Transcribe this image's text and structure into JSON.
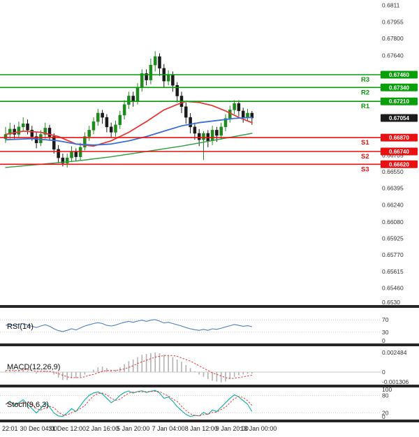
{
  "chart_data": {
    "type": "candlestick",
    "colors": {
      "background": "#ffffff",
      "resistance_line": "#089b08",
      "resistance_box": "#08a008",
      "support_line": "#e81010",
      "support_box": "#e81010",
      "current_price_box": "#1b1b1b",
      "candle_up": "#1f8b1f",
      "candle_down": "#1a1a1a",
      "ma_red": "#e53935",
      "ma_blue": "#3b6fd4",
      "ma_green": "#2f9e44",
      "rsi_line": "#4f81bd",
      "macd_histogram": "#b3b3b3",
      "signal_line": "#e53935",
      "stoch_line": "#20b2aa",
      "axis_text": "#333333",
      "separator": "#262626",
      "grid_dotted": "#c9c9c9"
    },
    "price_axis": {
      "max": 0.6816,
      "min": 0.653,
      "ticks": [
        {
          "label": "0.6811",
          "value": 0.6811
        },
        {
          "label": "0.67955",
          "value": 0.67955
        },
        {
          "label": "0.67800",
          "value": 0.678
        },
        {
          "label": "0.67640",
          "value": 0.6764
        },
        {
          "label": "0.66705",
          "value": 0.66705
        },
        {
          "label": "0.66550",
          "value": 0.6655
        },
        {
          "label": "0.66395",
          "value": 0.66395
        },
        {
          "label": "0.66240",
          "value": 0.6624
        },
        {
          "label": "0.66080",
          "value": 0.6608
        },
        {
          "label": "0.65925",
          "value": 0.65925
        },
        {
          "label": "0.65770",
          "value": 0.6577
        },
        {
          "label": "0.65615",
          "value": 0.65615
        },
        {
          "label": "0.65460",
          "value": 0.6546
        },
        {
          "label": "0.6530",
          "value": 0.653
        }
      ]
    },
    "levels": {
      "resistance": [
        {
          "name": "R3",
          "value": 0.6746,
          "label": "0.67460"
        },
        {
          "name": "R2",
          "value": 0.6734,
          "label": "0.67340"
        },
        {
          "name": "R1",
          "value": 0.6721,
          "label": "0.67210"
        }
      ],
      "support": [
        {
          "name": "S1",
          "value": 0.6687,
          "label": "0.66870"
        },
        {
          "name": "S2",
          "value": 0.6674,
          "label": "0.66740"
        },
        {
          "name": "S3",
          "value": 0.6662,
          "label": "0.66620"
        }
      ],
      "current": {
        "value": 0.67054,
        "label": "0.67054"
      }
    },
    "candles": [
      [
        0.6686,
        0.6697,
        0.6682,
        0.669
      ],
      [
        0.669,
        0.6701,
        0.6686,
        0.6695
      ],
      [
        0.6695,
        0.6699,
        0.6686,
        0.669
      ],
      [
        0.669,
        0.6702,
        0.6687,
        0.6697
      ],
      [
        0.6697,
        0.6706,
        0.6693,
        0.67
      ],
      [
        0.67,
        0.6704,
        0.669,
        0.6694
      ],
      [
        0.6694,
        0.6698,
        0.6684,
        0.6688
      ],
      [
        0.6688,
        0.6692,
        0.6677,
        0.6682
      ],
      [
        0.6682,
        0.6694,
        0.6679,
        0.669
      ],
      [
        0.669,
        0.6701,
        0.6686,
        0.6696
      ],
      [
        0.6696,
        0.6699,
        0.6684,
        0.6688
      ],
      [
        0.6688,
        0.6691,
        0.6672,
        0.6676
      ],
      [
        0.6676,
        0.668,
        0.6663,
        0.6668
      ],
      [
        0.6668,
        0.6672,
        0.666,
        0.6663
      ],
      [
        0.6663,
        0.6672,
        0.6659,
        0.6668
      ],
      [
        0.6668,
        0.6679,
        0.6664,
        0.6674
      ],
      [
        0.6674,
        0.6677,
        0.6665,
        0.6669
      ],
      [
        0.6669,
        0.6682,
        0.6666,
        0.6678
      ],
      [
        0.6678,
        0.6692,
        0.6675,
        0.6688
      ],
      [
        0.6688,
        0.6698,
        0.6684,
        0.6694
      ],
      [
        0.6694,
        0.6706,
        0.669,
        0.6702
      ],
      [
        0.6702,
        0.6714,
        0.6698,
        0.671
      ],
      [
        0.671,
        0.6713,
        0.67,
        0.6706
      ],
      [
        0.6706,
        0.6709,
        0.6692,
        0.6697
      ],
      [
        0.6697,
        0.6701,
        0.6687,
        0.6692
      ],
      [
        0.6692,
        0.6703,
        0.6688,
        0.6699
      ],
      [
        0.6699,
        0.6712,
        0.6695,
        0.6708
      ],
      [
        0.6708,
        0.6722,
        0.6704,
        0.6718
      ],
      [
        0.6718,
        0.673,
        0.6714,
        0.6726
      ],
      [
        0.6726,
        0.673,
        0.6716,
        0.6721
      ],
      [
        0.6721,
        0.6738,
        0.6718,
        0.6734
      ],
      [
        0.6734,
        0.6751,
        0.673,
        0.6747
      ],
      [
        0.6747,
        0.6751,
        0.6736,
        0.6741
      ],
      [
        0.6741,
        0.6761,
        0.6737,
        0.6755
      ],
      [
        0.6755,
        0.6768,
        0.6749,
        0.6763
      ],
      [
        0.6763,
        0.6766,
        0.6745,
        0.6752
      ],
      [
        0.6752,
        0.6756,
        0.6734,
        0.674
      ],
      [
        0.674,
        0.675,
        0.6736,
        0.6746
      ],
      [
        0.6746,
        0.6749,
        0.673,
        0.6736
      ],
      [
        0.6736,
        0.6739,
        0.672,
        0.6726
      ],
      [
        0.6726,
        0.673,
        0.671,
        0.6716
      ],
      [
        0.6716,
        0.672,
        0.67,
        0.6706
      ],
      [
        0.6706,
        0.671,
        0.6691,
        0.6697
      ],
      [
        0.6697,
        0.6701,
        0.6685,
        0.6691
      ],
      [
        0.6691,
        0.6695,
        0.6679,
        0.6685
      ],
      [
        0.6685,
        0.6693,
        0.6666,
        0.6691
      ],
      [
        0.6691,
        0.6694,
        0.6678,
        0.6684
      ],
      [
        0.6684,
        0.6698,
        0.668,
        0.6694
      ],
      [
        0.6694,
        0.6697,
        0.6683,
        0.6689
      ],
      [
        0.6689,
        0.6701,
        0.6685,
        0.6697
      ],
      [
        0.6697,
        0.6709,
        0.6693,
        0.6705
      ],
      [
        0.6705,
        0.6717,
        0.6701,
        0.6713
      ],
      [
        0.6713,
        0.6722,
        0.6709,
        0.6719
      ],
      [
        0.6719,
        0.6722,
        0.6707,
        0.6712
      ],
      [
        0.6712,
        0.6715,
        0.6701,
        0.6706
      ],
      [
        0.6706,
        0.6714,
        0.6702,
        0.671
      ],
      [
        0.671,
        0.6712,
        0.6699,
        0.67054
      ]
    ],
    "moving_averages": [
      {
        "name": "ma-slow-red",
        "color": "#e53935",
        "points": [
          [
            0,
            0.669
          ],
          [
            4,
            0.6693
          ],
          [
            8,
            0.6692
          ],
          [
            12,
            0.6688
          ],
          [
            16,
            0.6681
          ],
          [
            20,
            0.6679
          ],
          [
            24,
            0.6684
          ],
          [
            28,
            0.6692
          ],
          [
            32,
            0.6702
          ],
          [
            36,
            0.6713
          ],
          [
            39,
            0.6718
          ],
          [
            41,
            0.6721
          ],
          [
            44,
            0.672
          ],
          [
            47,
            0.6717
          ],
          [
            50,
            0.6712
          ],
          [
            53,
            0.6706
          ],
          [
            56,
            0.6701
          ]
        ]
      },
      {
        "name": "ma-medium-blue",
        "color": "#3b6fd4",
        "points": [
          [
            0,
            0.6685
          ],
          [
            6,
            0.6686
          ],
          [
            12,
            0.6684
          ],
          [
            16,
            0.6681
          ],
          [
            20,
            0.668
          ],
          [
            24,
            0.6681
          ],
          [
            28,
            0.6684
          ],
          [
            32,
            0.6688
          ],
          [
            36,
            0.6693
          ],
          [
            40,
            0.6698
          ],
          [
            44,
            0.6701
          ],
          [
            48,
            0.6703
          ],
          [
            52,
            0.6705
          ],
          [
            56,
            0.6706
          ]
        ]
      },
      {
        "name": "ma-long-green",
        "color": "#2f9e44",
        "points": [
          [
            0,
            0.6659
          ],
          [
            8,
            0.6662
          ],
          [
            16,
            0.6665
          ],
          [
            24,
            0.6669
          ],
          [
            32,
            0.6674
          ],
          [
            40,
            0.6679
          ],
          [
            48,
            0.6685
          ],
          [
            56,
            0.6691
          ]
        ]
      }
    ],
    "indicators": {
      "rsi": {
        "label": "RSI(14)",
        "levels": [
          70,
          30
        ],
        "axis": [
          {
            "label": "70",
            "value": 70
          },
          {
            "label": "30",
            "value": 30
          },
          {
            "label": "0",
            "value": 0
          }
        ],
        "values": [
          52,
          55,
          51,
          56,
          58,
          53,
          49,
          45,
          50,
          54,
          49,
          41,
          35,
          32,
          36,
          41,
          37,
          44,
          50,
          54,
          58,
          61,
          58,
          52,
          50,
          53,
          58,
          62,
          65,
          62,
          66,
          69,
          65,
          69,
          71,
          66,
          60,
          62,
          58,
          54,
          50,
          45,
          41,
          38,
          36,
          39,
          36,
          41,
          39,
          43,
          47,
          51,
          55,
          52,
          49,
          51,
          48
        ]
      },
      "macd": {
        "label": "MACD(12,26,9)",
        "axis": [
          {
            "label": "0.002484",
            "value": 0.002484
          },
          {
            "label": "0",
            "value": 0
          },
          {
            "label": "-0.001306",
            "value": -0.001306
          }
        ],
        "macd": [
          0.0002,
          0.0003,
          0.0002,
          0.0003,
          0.0004,
          0.0002,
          0.0,
          -0.0002,
          0.0,
          0.0002,
          0.0001,
          -0.0003,
          -0.0007,
          -0.001,
          -0.001,
          -0.0008,
          -0.0008,
          -0.0006,
          -0.0003,
          0.0,
          0.0003,
          0.0006,
          0.0007,
          0.0005,
          0.0003,
          0.0003,
          0.0006,
          0.001,
          0.0014,
          0.0016,
          0.0019,
          0.0022,
          0.0023,
          0.0024,
          0.002484,
          0.0024,
          0.0022,
          0.0021,
          0.0019,
          0.0016,
          0.0013,
          0.0009,
          0.0005,
          0.0001,
          -0.0003,
          -0.0006,
          -0.0009,
          -0.0011,
          -0.0012,
          -0.0013,
          -0.0012,
          -0.0009,
          -0.0006,
          -0.0004,
          -0.0003,
          -0.0002,
          -0.0002
        ],
        "signal": [
          0.0002,
          0.0002,
          0.0002,
          0.0002,
          0.0003,
          0.0003,
          0.0002,
          0.0001,
          0.0001,
          0.0001,
          0.0001,
          0.0,
          -0.0002,
          -0.0004,
          -0.0006,
          -0.0007,
          -0.0007,
          -0.0007,
          -0.0006,
          -0.0004,
          -0.0003,
          -0.0001,
          0.0001,
          0.0002,
          0.0002,
          0.0002,
          0.0003,
          0.0004,
          0.0006,
          0.0008,
          0.0011,
          0.0013,
          0.0015,
          0.0017,
          0.0019,
          0.002,
          0.0021,
          0.0021,
          0.0021,
          0.002,
          0.0018,
          0.0016,
          0.0014,
          0.0011,
          0.0008,
          0.0005,
          0.0002,
          -0.0001,
          -0.0003,
          -0.0005,
          -0.0007,
          -0.0008,
          -0.0008,
          -0.0007,
          -0.0006,
          -0.0005,
          -0.0004
        ]
      },
      "stoch": {
        "label": "Stoch(9,6,3)",
        "levels": [
          80,
          20
        ],
        "axis": [
          {
            "label": "100",
            "value": 100
          },
          {
            "label": "80",
            "value": 80
          },
          {
            "label": "20",
            "value": 20
          },
          {
            "label": "0",
            "value": 0
          }
        ],
        "main": [
          50,
          60,
          45,
          55,
          65,
          50,
          35,
          20,
          35,
          55,
          40,
          20,
          10,
          8,
          20,
          35,
          25,
          45,
          65,
          80,
          88,
          92,
          85,
          70,
          55,
          65,
          80,
          90,
          95,
          88,
          93,
          96,
          90,
          94,
          97,
          88,
          70,
          75,
          60,
          42,
          28,
          15,
          8,
          12,
          10,
          22,
          15,
          30,
          25,
          40,
          55,
          70,
          82,
          75,
          62,
          50,
          25
        ],
        "signal": [
          50,
          52,
          52,
          52,
          55,
          57,
          50,
          35,
          30,
          37,
          43,
          38,
          23,
          13,
          13,
          21,
          27,
          35,
          45,
          63,
          78,
          87,
          88,
          82,
          70,
          63,
          67,
          78,
          88,
          91,
          92,
          92,
          93,
          93,
          94,
          93,
          85,
          78,
          68,
          59,
          43,
          28,
          17,
          12,
          10,
          15,
          16,
          22,
          23,
          32,
          40,
          55,
          69,
          76,
          73,
          62,
          46
        ]
      }
    },
    "time_labels": [
      {
        "label": "22:01",
        "i": 1
      },
      {
        "label": "30 Dec 04:00",
        "i": 7.5
      },
      {
        "label": "31 Dec 12:00",
        "i": 14
      },
      {
        "label": "2 Jan 16:00",
        "i": 22
      },
      {
        "label": "5 Jan 20:00",
        "i": 29
      },
      {
        "label": "7 Jan 04:00",
        "i": 37
      },
      {
        "label": "8 Jan 12:00",
        "i": 44.5
      },
      {
        "label": "9 Jan 20:00",
        "i": 51.5
      },
      {
        "label": "13 Jan 00:00",
        "i": 57.5
      }
    ]
  }
}
